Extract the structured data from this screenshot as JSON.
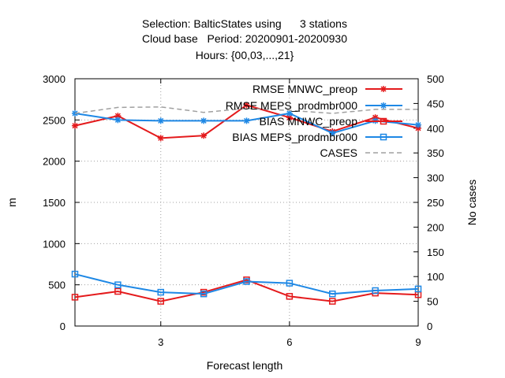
{
  "chart_data": {
    "type": "line",
    "title_lines": [
      "Selection: BalticStates using      3 stations",
      "Cloud base   Period: 20200901-20200930",
      "Hours: {00,03,...,21}"
    ],
    "xlabel": "Forecast length",
    "ylabel": "m",
    "y2label": "No cases",
    "xlim": [
      1,
      9
    ],
    "ylim": [
      0,
      3000
    ],
    "y2lim": [
      0,
      500
    ],
    "x_ticks": [
      3,
      6,
      9
    ],
    "y_ticks": [
      0,
      500,
      1000,
      1500,
      2000,
      2500,
      3000
    ],
    "y2_ticks": [
      0,
      50,
      100,
      150,
      200,
      250,
      300,
      350,
      400,
      450,
      500
    ],
    "grid": true,
    "legend_position": "top-right",
    "x": [
      1,
      2,
      3,
      4,
      5,
      6,
      7,
      8,
      9
    ],
    "series": [
      {
        "name": "RMSE MNWC_preop",
        "axis": "y",
        "color": "#e41a1c",
        "marker": "star",
        "values": [
          2430,
          2550,
          2280,
          2310,
          2680,
          2530,
          2360,
          2530,
          2400
        ]
      },
      {
        "name": "RMSE MEPS_prodmbr000",
        "axis": "y",
        "color": "#1e88e5",
        "marker": "star",
        "values": [
          2580,
          2500,
          2490,
          2490,
          2490,
          2580,
          2340,
          2490,
          2440
        ]
      },
      {
        "name": "BIAS MNWC_preop",
        "axis": "y",
        "color": "#e41a1c",
        "marker": "square",
        "values": [
          350,
          420,
          300,
          410,
          560,
          360,
          300,
          400,
          380
        ]
      },
      {
        "name": "BIAS MEPS_prodmbr000",
        "axis": "y",
        "color": "#1e88e5",
        "marker": "square",
        "values": [
          630,
          500,
          410,
          390,
          540,
          520,
          390,
          430,
          450
        ]
      },
      {
        "name": "CASES",
        "axis": "y2",
        "color": "#a0a0a0",
        "marker": "none",
        "dashed": true,
        "values": [
          430,
          442,
          443,
          432,
          440,
          436,
          430,
          438,
          438
        ]
      }
    ]
  }
}
